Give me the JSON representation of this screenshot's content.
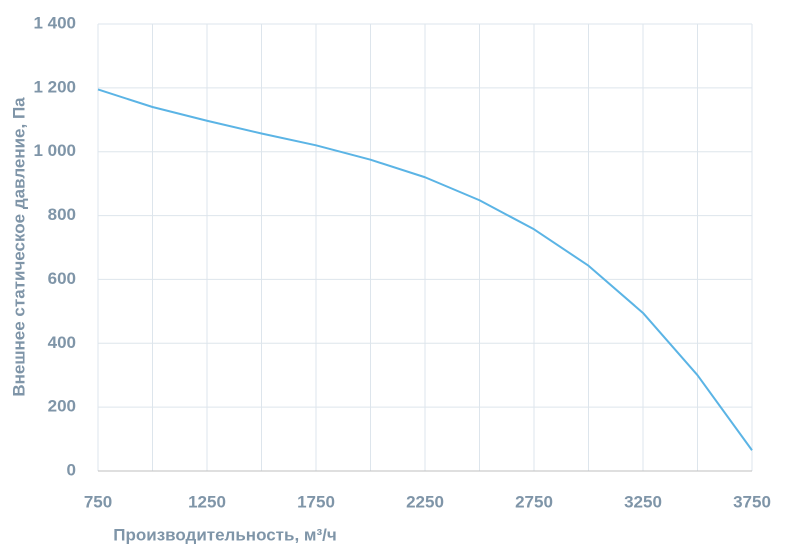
{
  "chart_data": {
    "type": "line",
    "x_label": "Производительность, м³/ч",
    "y_label": "Внешнее статическое  давление, Па",
    "x": [
      750,
      1000,
      1250,
      1500,
      1750,
      2000,
      2250,
      2500,
      2750,
      3000,
      3250,
      3500,
      3750
    ],
    "values": [
      1195,
      1140,
      1097,
      1057,
      1020,
      975,
      920,
      848,
      757,
      643,
      495,
      300,
      65
    ],
    "color": "#5bb4e5",
    "xlim": [
      750,
      3750
    ],
    "xticks": [
      750,
      1250,
      1750,
      2250,
      2750,
      3250,
      3750
    ],
    "x_minor_gridlines": [
      1000,
      1500,
      2000,
      2500,
      3000,
      3500
    ],
    "ylim": [
      0,
      1400
    ],
    "yticks": [
      0,
      200,
      400,
      600,
      800,
      {
        "value": 1000,
        "label": "1 000"
      },
      {
        "value": 1200,
        "label": "1 200"
      },
      {
        "value": 1400,
        "label": "1 400"
      }
    ],
    "grid": true
  }
}
